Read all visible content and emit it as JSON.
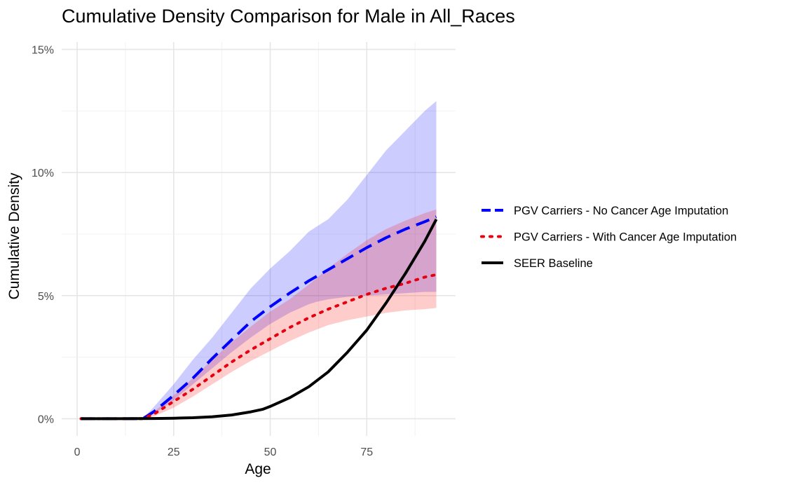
{
  "chart_data": {
    "type": "area",
    "title": "Cumulative Density Comparison for Male in All_Races",
    "xlabel": "Age",
    "ylabel": "Cumulative Density",
    "xlim": [
      -4,
      98
    ],
    "ylim": [
      -0.7,
      15.3
    ],
    "x_ticks": [
      0,
      25,
      50,
      75
    ],
    "x_tick_labels": [
      "0",
      "25",
      "50",
      "75"
    ],
    "y_ticks": [
      0,
      5,
      10,
      15
    ],
    "y_tick_labels": [
      "0%",
      "5%",
      "10%",
      "15%"
    ],
    "grid": true,
    "legend_position": "right",
    "bands": [
      {
        "color": "#0000ff",
        "opacity": 0.2,
        "x": [
          1,
          10,
          17,
          20,
          25,
          30,
          35,
          40,
          45,
          50,
          55,
          60,
          62,
          65,
          70,
          75,
          80,
          85,
          90,
          93
        ],
        "lower": [
          0,
          0,
          0,
          0.2,
          0.75,
          1.4,
          2.05,
          2.7,
          3.3,
          3.85,
          4.3,
          4.65,
          4.75,
          4.85,
          4.95,
          5.0,
          5.05,
          5.1,
          5.15,
          5.15
        ],
        "upper": [
          0,
          0,
          0,
          0.5,
          1.4,
          2.4,
          3.3,
          4.3,
          5.3,
          6.1,
          6.8,
          7.6,
          7.8,
          8.1,
          8.9,
          9.9,
          10.9,
          11.7,
          12.5,
          12.9
        ]
      },
      {
        "color": "#ff0000",
        "opacity": 0.2,
        "x": [
          1,
          10,
          17,
          20,
          25,
          30,
          35,
          40,
          45,
          50,
          55,
          60,
          65,
          70,
          75,
          80,
          85,
          90,
          93
        ],
        "lower": [
          0,
          0,
          0,
          0.1,
          0.45,
          0.9,
          1.4,
          1.9,
          2.35,
          2.75,
          3.15,
          3.5,
          3.8,
          4.0,
          4.15,
          4.3,
          4.4,
          4.45,
          4.5
        ],
        "upper": [
          0,
          0,
          0,
          0.3,
          0.95,
          1.65,
          2.4,
          3.1,
          3.75,
          4.35,
          4.85,
          5.45,
          6.1,
          6.7,
          7.25,
          7.7,
          8.05,
          8.35,
          8.5
        ]
      }
    ],
    "series": [
      {
        "name": "PGV Carriers - No Cancer Age Imputation",
        "color": "#0000ff",
        "dash": "long",
        "x": [
          1,
          10,
          17,
          20,
          25,
          30,
          35,
          40,
          45,
          50,
          55,
          60,
          65,
          70,
          75,
          80,
          85,
          90,
          93
        ],
        "values": [
          0,
          0,
          0,
          0.3,
          0.95,
          1.65,
          2.45,
          3.2,
          3.95,
          4.55,
          5.1,
          5.6,
          6.05,
          6.5,
          6.95,
          7.35,
          7.7,
          8.0,
          8.2
        ]
      },
      {
        "name": "PGV Carriers - With Cancer Age Imputation",
        "color": "#e6000f",
        "dash": "dot",
        "x": [
          1,
          10,
          17,
          20,
          25,
          30,
          35,
          40,
          45,
          50,
          55,
          60,
          65,
          70,
          75,
          80,
          85,
          90,
          93
        ],
        "values": [
          0,
          0,
          0,
          0.2,
          0.7,
          1.2,
          1.75,
          2.3,
          2.8,
          3.25,
          3.7,
          4.1,
          4.45,
          4.75,
          5.05,
          5.3,
          5.5,
          5.75,
          5.85
        ]
      },
      {
        "name": "SEER Baseline",
        "color": "#000000",
        "dash": "solid",
        "x": [
          1,
          10,
          20,
          25,
          30,
          35,
          40,
          45,
          48,
          50,
          55,
          60,
          65,
          70,
          75,
          80,
          85,
          90,
          93
        ],
        "values": [
          0,
          0,
          0.01,
          0.02,
          0.04,
          0.08,
          0.15,
          0.28,
          0.38,
          0.5,
          0.85,
          1.3,
          1.9,
          2.7,
          3.6,
          4.7,
          5.9,
          7.2,
          8.1
        ]
      }
    ]
  }
}
